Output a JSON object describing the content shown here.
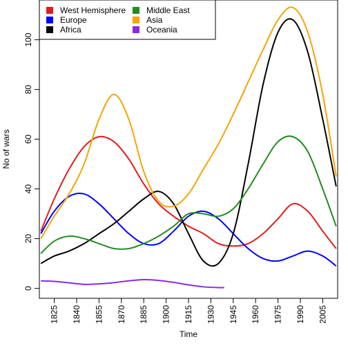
{
  "chart_data": {
    "type": "line",
    "xlabel": "Time",
    "ylabel": "No of wars",
    "xlim": [
      1815,
      2015
    ],
    "ylim": [
      -4,
      116
    ],
    "x_ticks": [
      1825,
      1840,
      1855,
      1870,
      1885,
      1900,
      1915,
      1930,
      1945,
      1960,
      1975,
      1990,
      2005
    ],
    "y_ticks": [
      0,
      20,
      40,
      60,
      80,
      100
    ],
    "legend_position": "top-left",
    "series": [
      {
        "name": "West Hemisphere",
        "color": "#e41a1c",
        "x": [
          1816,
          1825,
          1835,
          1845,
          1855,
          1865,
          1875,
          1885,
          1895,
          1905,
          1915,
          1925,
          1935,
          1945,
          1955,
          1965,
          1975,
          1985,
          1995,
          2005,
          2014
        ],
        "y": [
          23,
          36,
          48,
          57,
          61,
          59,
          52,
          42,
          34,
          29,
          25,
          22,
          18,
          17,
          18,
          22,
          28,
          34,
          31,
          23,
          16
        ]
      },
      {
        "name": "Europe",
        "color": "#0000ff",
        "x": [
          1816,
          1825,
          1835,
          1845,
          1855,
          1865,
          1875,
          1885,
          1895,
          1905,
          1915,
          1925,
          1935,
          1945,
          1955,
          1965,
          1975,
          1985,
          1995,
          2005,
          2014
        ],
        "y": [
          22,
          31,
          37,
          38,
          34,
          28,
          22,
          18,
          18,
          23,
          29,
          31,
          28,
          22,
          16,
          12,
          11,
          13,
          15,
          13,
          9
        ]
      },
      {
        "name": "Africa",
        "color": "#000000",
        "x": [
          1816,
          1825,
          1835,
          1845,
          1855,
          1865,
          1875,
          1885,
          1895,
          1905,
          1915,
          1925,
          1935,
          1945,
          1955,
          1965,
          1975,
          1985,
          1995,
          2005,
          2014
        ],
        "y": [
          10,
          13,
          15,
          18,
          22,
          26,
          31,
          36,
          39,
          34,
          22,
          11,
          10,
          22,
          50,
          82,
          103,
          108,
          95,
          68,
          41
        ]
      },
      {
        "name": "Middle East",
        "color": "#228b22",
        "x": [
          1816,
          1825,
          1835,
          1845,
          1855,
          1865,
          1875,
          1885,
          1895,
          1905,
          1915,
          1925,
          1935,
          1945,
          1955,
          1965,
          1975,
          1985,
          1995,
          2005,
          2014
        ],
        "y": [
          14,
          19,
          21,
          20,
          18,
          16,
          16,
          18,
          21,
          25,
          30,
          30,
          29,
          32,
          40,
          50,
          59,
          61,
          55,
          40,
          25
        ]
      },
      {
        "name": "Asia",
        "color": "#f5a400",
        "x": [
          1816,
          1825,
          1835,
          1845,
          1855,
          1865,
          1875,
          1885,
          1895,
          1905,
          1915,
          1925,
          1935,
          1945,
          1955,
          1965,
          1975,
          1985,
          1995,
          2005,
          2014
        ],
        "y": [
          20,
          29,
          38,
          50,
          68,
          78,
          68,
          47,
          35,
          33,
          38,
          48,
          58,
          70,
          83,
          96,
          108,
          113,
          103,
          78,
          45
        ]
      },
      {
        "name": "Oceania",
        "color": "#8a2be2",
        "x": [
          1816,
          1825,
          1835,
          1845,
          1855,
          1865,
          1875,
          1885,
          1895,
          1905,
          1915,
          1925,
          1935,
          1939
        ],
        "y": [
          3,
          2.8,
          2.2,
          1.6,
          1.8,
          2.3,
          3,
          3.5,
          3.2,
          2.4,
          1.4,
          0.6,
          0.3,
          0.3
        ]
      }
    ]
  }
}
